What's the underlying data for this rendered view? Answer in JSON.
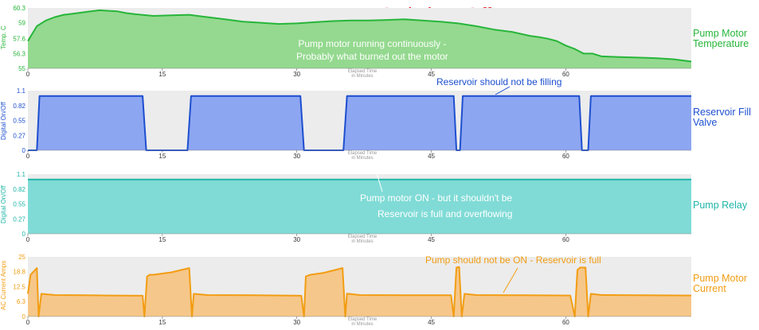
{
  "title": "Pump Motor Never Switches Off",
  "x_axis": {
    "label_line1": "Elapsed Time",
    "label_line2": "in Minutes",
    "ticks": [
      "0",
      "15",
      "30",
      "45",
      "60"
    ]
  },
  "colors": {
    "title": "#e5191f",
    "temperature": "#27b53a",
    "temperature_fill": "#94d98f",
    "valve": "#1d4fcf",
    "valve_fill": "#8da6f2",
    "relay": "#1fb5a8",
    "relay_fill": "#80dbd6",
    "current": "#f29d13",
    "current_fill": "#f6c78a",
    "plot_bg": "#ececec"
  },
  "chart_data": [
    {
      "type": "area",
      "name": "temperature",
      "ylabel": "Temp. C",
      "side_label": [
        "Pump Motor",
        "Temperature"
      ],
      "ylim": [
        55,
        60.3
      ],
      "yticks": [
        "60.3",
        "59",
        "57.6",
        "56.3",
        "55"
      ],
      "ytick_values": [
        60.3,
        59,
        57.6,
        56.3,
        55
      ],
      "xlim": [
        0,
        74
      ],
      "x": [
        0,
        1,
        2,
        3,
        4,
        5,
        6,
        7,
        8,
        9,
        10,
        11,
        12,
        14,
        16,
        18,
        20,
        22,
        24,
        26,
        28,
        30,
        32,
        34,
        36,
        38,
        40,
        42,
        44,
        46,
        48,
        50,
        52,
        54,
        56,
        57,
        58,
        59,
        60,
        61,
        62,
        63,
        64,
        66,
        68,
        70,
        72,
        74
      ],
      "y": [
        57.4,
        58.7,
        59.2,
        59.5,
        59.7,
        59.8,
        59.9,
        60.0,
        60.1,
        60.05,
        60.0,
        59.85,
        59.75,
        59.6,
        59.65,
        59.7,
        59.5,
        59.3,
        59.1,
        59.0,
        58.9,
        58.95,
        59.05,
        59.15,
        59.2,
        59.2,
        59.25,
        59.3,
        59.2,
        59.1,
        58.95,
        58.7,
        58.4,
        58.2,
        57.85,
        57.75,
        57.6,
        57.4,
        57.0,
        56.7,
        56.3,
        56.3,
        56.05,
        56.0,
        55.95,
        55.9,
        55.8,
        55.6
      ],
      "annotation": [
        "Pump motor running continuously -",
        "Probably what burned out the motor"
      ]
    },
    {
      "type": "area",
      "name": "reservoir_fill_valve",
      "ylabel": "Digital On/Off",
      "side_label": [
        "Reservoir Fill",
        "Valve"
      ],
      "ylim": [
        0,
        1.1
      ],
      "yticks": [
        "1.1",
        "0.82",
        "0.55",
        "0.27",
        "0"
      ],
      "ytick_values": [
        1.1,
        0.82,
        0.55,
        0.27,
        0
      ],
      "xlim": [
        0,
        74
      ],
      "x": [
        0,
        1.0,
        1.3,
        12.8,
        13.2,
        17.8,
        18.2,
        30.4,
        30.8,
        35.2,
        35.6,
        47.5,
        47.8,
        48.2,
        48.5,
        61.5,
        61.8,
        62.5,
        62.8,
        74
      ],
      "y": [
        0,
        0,
        1,
        1,
        0,
        0,
        1,
        1,
        0,
        0,
        1,
        1,
        0,
        0,
        1,
        1,
        0,
        0,
        1,
        1
      ],
      "annotation": [
        "Reservoir should not be filling"
      ]
    },
    {
      "type": "area",
      "name": "pump_relay",
      "ylabel": "Digital On/Off",
      "side_label": [
        "Pump Relay"
      ],
      "ylim": [
        0,
        1.1
      ],
      "yticks": [
        "1.1",
        "0.82",
        "0.55",
        "0.27",
        "0"
      ],
      "ytick_values": [
        1.1,
        0.82,
        0.55,
        0.27,
        0
      ],
      "xlim": [
        0,
        74
      ],
      "x": [
        0,
        74
      ],
      "y": [
        1,
        1
      ],
      "annotation": [
        "Pump motor ON - but it shouldn't be",
        "Reservoir is full and overflowing"
      ]
    },
    {
      "type": "area",
      "name": "ac_current",
      "ylabel": "AC Current Amps",
      "side_label": [
        "Pump Motor",
        "Current"
      ],
      "ylim": [
        0,
        25
      ],
      "yticks": [
        "25",
        "18.8",
        "12.5",
        "6.3",
        "0"
      ],
      "ytick_values": [
        25,
        18.8,
        12.5,
        6.3,
        0
      ],
      "xlim": [
        0,
        74
      ],
      "x": [
        0,
        0.3,
        1.0,
        1.2,
        1.5,
        3,
        6,
        9,
        12.8,
        13.0,
        13.3,
        13.6,
        14,
        16,
        18.0,
        18.3,
        18.5,
        20,
        25,
        30.5,
        30.8,
        31.0,
        31.5,
        33,
        35.1,
        35.4,
        35.6,
        37,
        42,
        47.2,
        47.5,
        47.8,
        48.1,
        48.4,
        48.7,
        50,
        55,
        60.5,
        61.0,
        61.3,
        61.6,
        62.2,
        62.5,
        62.8,
        64,
        68,
        74
      ],
      "y": [
        9.5,
        17.5,
        20.3,
        0,
        9.5,
        9.0,
        8.9,
        8.8,
        8.7,
        0,
        16.8,
        17.5,
        17.5,
        18.5,
        20.3,
        0,
        9.5,
        9.0,
        8.9,
        8.7,
        0,
        16.8,
        17.5,
        18.3,
        20.3,
        0,
        9.6,
        9.0,
        8.9,
        8.9,
        0,
        20.5,
        20.8,
        0,
        9.5,
        9.0,
        8.9,
        8.8,
        0,
        19.5,
        20.5,
        20.5,
        0,
        9.5,
        9.0,
        8.9,
        8.8
      ],
      "annotation": [
        "Pump should not be ON - Reservoir is full"
      ]
    }
  ]
}
